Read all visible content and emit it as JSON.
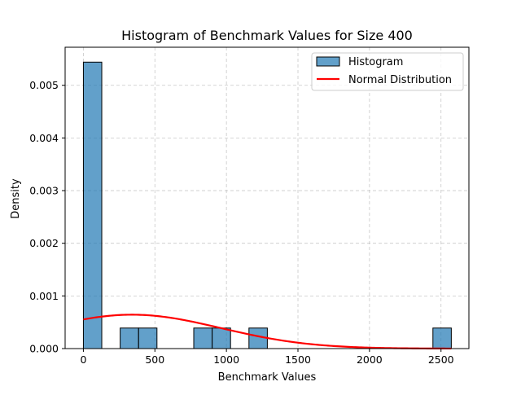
{
  "chart_data": {
    "type": "bar",
    "title": "Histogram of Benchmark Values for Size 400",
    "xlabel": "Benchmark Values",
    "ylabel": "Density",
    "xlim": [
      -127.6,
      2695
    ],
    "ylim": [
      0,
      0.005723
    ],
    "xticks": [
      0,
      500,
      1000,
      1500,
      2000,
      2500
    ],
    "xtick_labels": [
      "0",
      "500",
      "1000",
      "1500",
      "2000",
      "2500"
    ],
    "yticks": [
      0,
      0.001,
      0.002,
      0.003,
      0.004,
      0.005
    ],
    "ytick_labels": [
      "0.000",
      "0.001",
      "0.002",
      "0.003",
      "0.004",
      "0.005"
    ],
    "grid": true,
    "legend_position": "top-right",
    "histogram": {
      "name": "Histogram",
      "color": "#1f77b4",
      "bin_edges": [
        0,
        128.6,
        257.2,
        385.8,
        514.4,
        643,
        771.6,
        900.2,
        1028.8,
        1157.4,
        1286,
        1414.6,
        1543.2,
        1671.8,
        1800.4,
        1929,
        2057.6,
        2186.2,
        2314.8,
        2443.4,
        2572
      ],
      "densities": [
        0.00544,
        0,
        0.00039,
        0.00039,
        0,
        0,
        0.00039,
        0.00039,
        0,
        0.00039,
        0,
        0,
        0,
        0,
        0,
        0,
        0,
        0,
        0,
        0.00039
      ]
    },
    "curve": {
      "name": "Normal Distribution",
      "color": "#ff0000",
      "mean": 340,
      "std": 620,
      "x_range": [
        0,
        2572
      ]
    }
  }
}
